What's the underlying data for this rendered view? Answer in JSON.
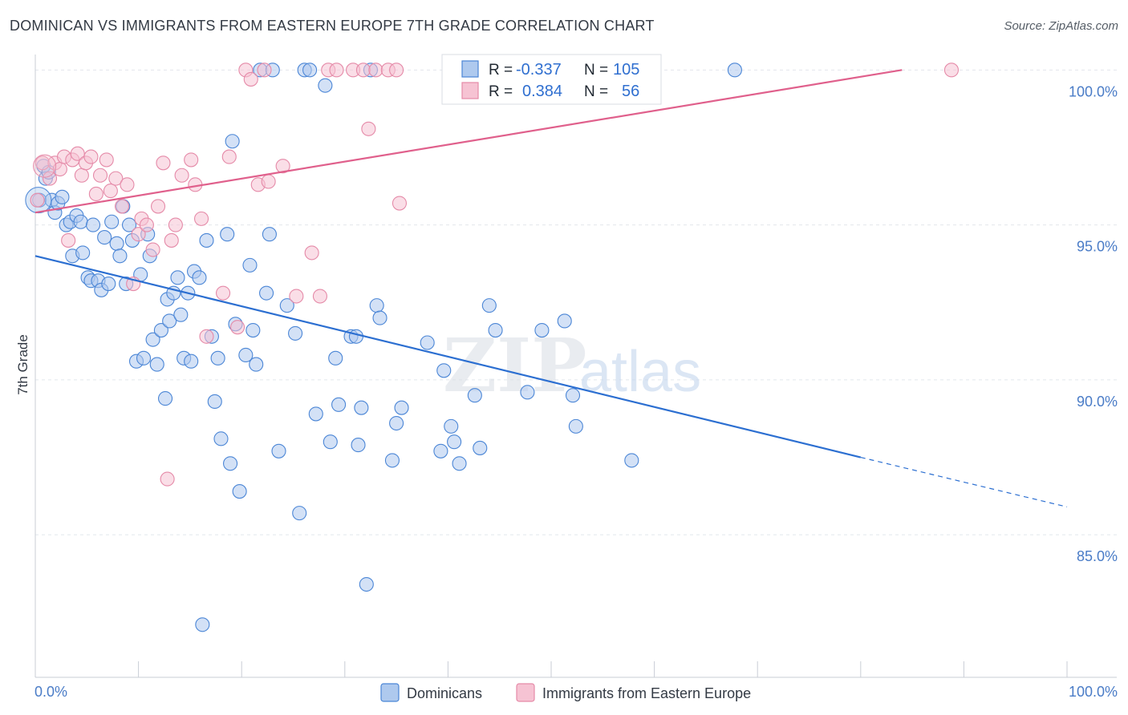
{
  "title": "DOMINICAN VS IMMIGRANTS FROM EASTERN EUROPE 7TH GRADE CORRELATION CHART",
  "source": "Source: ZipAtlas.com",
  "colors": {
    "blue_fill": "#aec9ee",
    "blue_stroke": "#4b86d6",
    "blue_line": "#2c6fd1",
    "pink_fill": "#f6c3d3",
    "pink_stroke": "#e58aa8",
    "pink_line": "#e0608c",
    "grid": "#e2e6ec",
    "axis_label": "#4a7cc7"
  },
  "watermark": {
    "zip": "ZIP",
    "atlas": "atlas"
  },
  "legend_box": {
    "rows": [
      {
        "r_label": "R =",
        "r_value": "-0.337",
        "n_label": "N =",
        "n_value": "105"
      },
      {
        "r_label": "R =",
        "r_value": "0.384",
        "n_label": "N =",
        "n_value": "56"
      }
    ]
  },
  "bottom_legend": {
    "items": [
      "Dominicans",
      "Immigrants from Eastern Europe"
    ]
  },
  "chart_data": {
    "type": "scatter",
    "title": "DOMINICAN VS IMMIGRANTS FROM EASTERN EUROPE 7TH GRADE CORRELATION CHART",
    "xlabel": "",
    "ylabel": "7th Grade",
    "xlim": [
      0,
      100
    ],
    "ylim": [
      80.4,
      100.5
    ],
    "x_ticks": [
      0,
      10,
      20,
      30,
      40,
      50,
      60,
      70,
      80,
      90,
      100
    ],
    "x_tick_labels_shown": {
      "0": "0.0%",
      "100": "100.0%"
    },
    "y_ticks": [
      85,
      90,
      95,
      100
    ],
    "y_tick_labels": [
      "85.0%",
      "90.0%",
      "95.0%",
      "100.0%"
    ],
    "grid": true,
    "legend_position": "top-center",
    "series": [
      {
        "name": "Dominicans",
        "R": -0.337,
        "N": 105,
        "trend": {
          "x0": 0,
          "y0": 94.0,
          "x1": 80,
          "y1": 87.5,
          "dashed_to_x": 100,
          "dashed_to_y": 85.9
        },
        "points": [
          [
            0.4,
            95.8
          ],
          [
            0.8,
            96.9
          ],
          [
            1.0,
            96.5
          ],
          [
            1.3,
            96.7
          ],
          [
            1.6,
            95.8
          ],
          [
            1.9,
            95.4
          ],
          [
            2.2,
            95.7
          ],
          [
            2.6,
            95.9
          ],
          [
            3.0,
            95.0
          ],
          [
            3.4,
            95.1
          ],
          [
            3.6,
            94.0
          ],
          [
            4.0,
            95.3
          ],
          [
            4.4,
            95.1
          ],
          [
            4.6,
            94.1
          ],
          [
            5.1,
            93.3
          ],
          [
            5.4,
            93.2
          ],
          [
            5.6,
            95.0
          ],
          [
            6.1,
            93.2
          ],
          [
            6.4,
            92.9
          ],
          [
            6.7,
            94.6
          ],
          [
            7.1,
            93.1
          ],
          [
            7.4,
            95.1
          ],
          [
            7.9,
            94.4
          ],
          [
            8.2,
            94.0
          ],
          [
            8.5,
            95.6
          ],
          [
            8.8,
            93.1
          ],
          [
            9.1,
            95.0
          ],
          [
            9.4,
            94.5
          ],
          [
            9.8,
            90.6
          ],
          [
            10.2,
            93.4
          ],
          [
            10.5,
            90.7
          ],
          [
            10.9,
            94.7
          ],
          [
            11.1,
            94.0
          ],
          [
            11.4,
            91.3
          ],
          [
            11.8,
            90.5
          ],
          [
            12.2,
            91.6
          ],
          [
            12.6,
            89.4
          ],
          [
            12.8,
            92.6
          ],
          [
            13.0,
            91.9
          ],
          [
            13.4,
            92.8
          ],
          [
            13.8,
            93.3
          ],
          [
            14.1,
            92.1
          ],
          [
            14.4,
            90.7
          ],
          [
            14.8,
            92.8
          ],
          [
            15.1,
            90.6
          ],
          [
            15.4,
            93.5
          ],
          [
            15.9,
            93.3
          ],
          [
            16.2,
            82.1
          ],
          [
            16.6,
            94.5
          ],
          [
            17.1,
            91.4
          ],
          [
            17.4,
            89.3
          ],
          [
            17.7,
            90.7
          ],
          [
            18.0,
            88.1
          ],
          [
            18.6,
            94.7
          ],
          [
            18.9,
            87.3
          ],
          [
            19.1,
            97.7
          ],
          [
            19.4,
            91.8
          ],
          [
            19.8,
            86.4
          ],
          [
            20.4,
            90.8
          ],
          [
            20.8,
            93.7
          ],
          [
            21.1,
            91.6
          ],
          [
            21.4,
            90.5
          ],
          [
            21.8,
            100.0
          ],
          [
            22.4,
            92.8
          ],
          [
            22.7,
            94.7
          ],
          [
            23.0,
            100.0
          ],
          [
            23.6,
            87.7
          ],
          [
            24.4,
            92.4
          ],
          [
            25.2,
            91.5
          ],
          [
            25.6,
            85.7
          ],
          [
            26.1,
            100.0
          ],
          [
            26.6,
            100.0
          ],
          [
            27.2,
            88.9
          ],
          [
            28.1,
            99.5
          ],
          [
            28.6,
            88.0
          ],
          [
            29.1,
            90.7
          ],
          [
            29.4,
            89.2
          ],
          [
            30.6,
            91.4
          ],
          [
            31.1,
            91.4
          ],
          [
            31.3,
            87.9
          ],
          [
            31.6,
            89.1
          ],
          [
            32.1,
            83.4
          ],
          [
            32.5,
            100.0
          ],
          [
            33.1,
            92.4
          ],
          [
            33.4,
            92.0
          ],
          [
            34.6,
            87.4
          ],
          [
            35.0,
            88.6
          ],
          [
            35.5,
            89.1
          ],
          [
            38.0,
            91.2
          ],
          [
            39.3,
            87.7
          ],
          [
            39.6,
            90.3
          ],
          [
            40.3,
            88.5
          ],
          [
            40.6,
            88.0
          ],
          [
            41.1,
            87.3
          ],
          [
            42.6,
            89.5
          ],
          [
            43.1,
            87.8
          ],
          [
            44.0,
            92.4
          ],
          [
            44.6,
            91.6
          ],
          [
            47.7,
            89.6
          ],
          [
            49.1,
            91.6
          ],
          [
            51.3,
            91.9
          ],
          [
            52.1,
            89.5
          ],
          [
            52.4,
            88.5
          ],
          [
            57.8,
            87.4
          ],
          [
            67.8,
            100.0
          ]
        ]
      },
      {
        "name": "Immigrants from Eastern Europe",
        "R": 0.384,
        "N": 56,
        "trend": {
          "x0": 0,
          "y0": 95.4,
          "x1": 84,
          "y1": 100.0
        },
        "points": [
          [
            0.2,
            95.8
          ],
          [
            0.7,
            97.0
          ],
          [
            1.4,
            96.5
          ],
          [
            1.9,
            97.0
          ],
          [
            2.4,
            96.8
          ],
          [
            2.8,
            97.2
          ],
          [
            3.2,
            94.5
          ],
          [
            3.6,
            97.1
          ],
          [
            4.1,
            97.3
          ],
          [
            4.5,
            96.6
          ],
          [
            4.9,
            97.0
          ],
          [
            5.4,
            97.2
          ],
          [
            5.9,
            96.0
          ],
          [
            6.3,
            96.6
          ],
          [
            6.9,
            97.1
          ],
          [
            7.3,
            96.1
          ],
          [
            7.8,
            96.5
          ],
          [
            8.4,
            95.6
          ],
          [
            8.9,
            96.3
          ],
          [
            9.5,
            93.1
          ],
          [
            10.0,
            94.7
          ],
          [
            10.3,
            95.2
          ],
          [
            10.8,
            95.0
          ],
          [
            11.4,
            94.2
          ],
          [
            11.9,
            95.6
          ],
          [
            12.4,
            97.0
          ],
          [
            12.8,
            86.8
          ],
          [
            13.2,
            94.5
          ],
          [
            13.6,
            95.0
          ],
          [
            14.2,
            96.6
          ],
          [
            15.1,
            97.1
          ],
          [
            15.5,
            96.3
          ],
          [
            16.1,
            95.2
          ],
          [
            16.6,
            91.4
          ],
          [
            18.2,
            92.8
          ],
          [
            18.8,
            97.2
          ],
          [
            19.6,
            91.7
          ],
          [
            20.4,
            100.0
          ],
          [
            20.9,
            99.7
          ],
          [
            21.6,
            96.3
          ],
          [
            22.2,
            100.0
          ],
          [
            22.6,
            96.4
          ],
          [
            24.0,
            96.9
          ],
          [
            25.3,
            92.7
          ],
          [
            26.8,
            94.1
          ],
          [
            27.6,
            92.7
          ],
          [
            28.4,
            100.0
          ],
          [
            29.2,
            100.0
          ],
          [
            30.8,
            100.0
          ],
          [
            31.8,
            100.0
          ],
          [
            32.3,
            98.1
          ],
          [
            33.0,
            100.0
          ],
          [
            34.2,
            100.0
          ],
          [
            35.0,
            100.0
          ],
          [
            35.3,
            95.7
          ],
          [
            88.8,
            100.0
          ]
        ]
      }
    ]
  }
}
